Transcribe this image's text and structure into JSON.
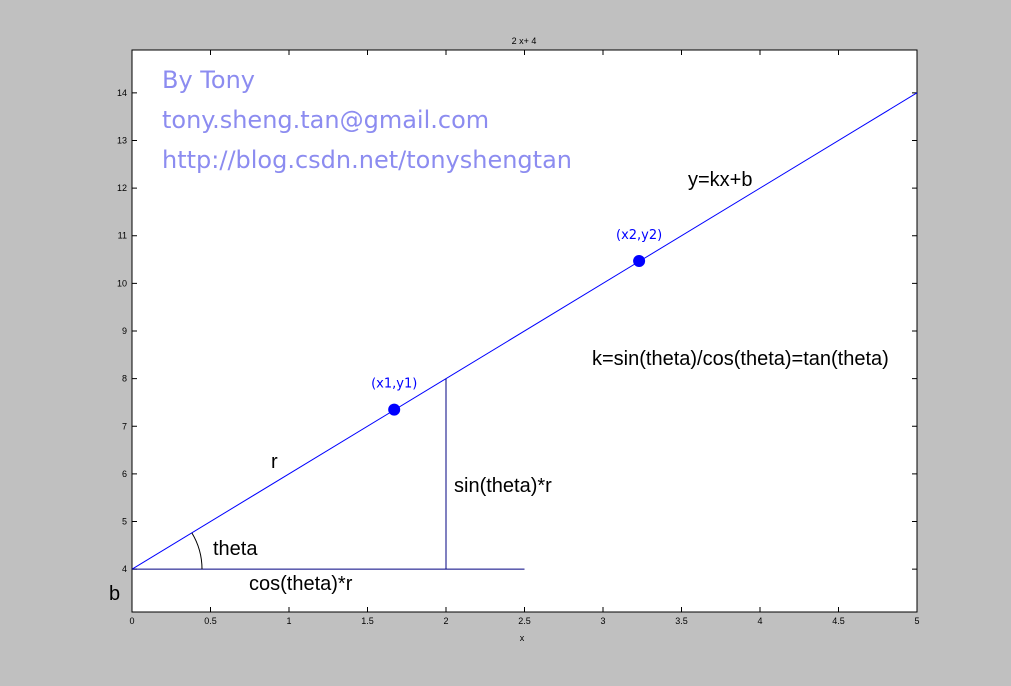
{
  "chart_data": {
    "type": "line",
    "title": "2 x+ 4",
    "xlabel": "x",
    "ylabel": "",
    "xlim": [
      0,
      5
    ],
    "ylim": [
      3.1,
      14.9
    ],
    "x_ticks": [
      "0",
      "0.5",
      "1",
      "1.5",
      "2",
      "2.5",
      "3",
      "3.5",
      "4",
      "4.5",
      "5"
    ],
    "y_ticks": [
      "4",
      "5",
      "6",
      "7",
      "8",
      "9",
      "10",
      "11",
      "12",
      "13",
      "14"
    ],
    "grid": false,
    "series": [
      {
        "x": [
          0,
          5
        ],
        "y": [
          4,
          14
        ],
        "color": "#0000ff"
      }
    ],
    "points": [
      {
        "label": "(x1,y1)",
        "x": 1.67,
        "y": 7.35
      },
      {
        "label": "(x2,y2)",
        "x": 3.23,
        "y": 10.47
      }
    ],
    "annotations": {
      "equation": "y=kx+b",
      "slope": "k=sin(theta)/cos(theta)=tan(theta)",
      "radius": "r",
      "angle": "theta",
      "opposite": "sin(theta)*r",
      "adjacent": "cos(theta)*r",
      "intercept": "b"
    },
    "watermark": [
      "By Tony",
      "tony.sheng.tan@gmail.com",
      "http://blog.csdn.net/tonyshengtan"
    ],
    "colors": {
      "line": "#0000ff",
      "point": "#0000ff",
      "watermark": "#8c8cf0",
      "background": "#c0c0c0"
    }
  }
}
